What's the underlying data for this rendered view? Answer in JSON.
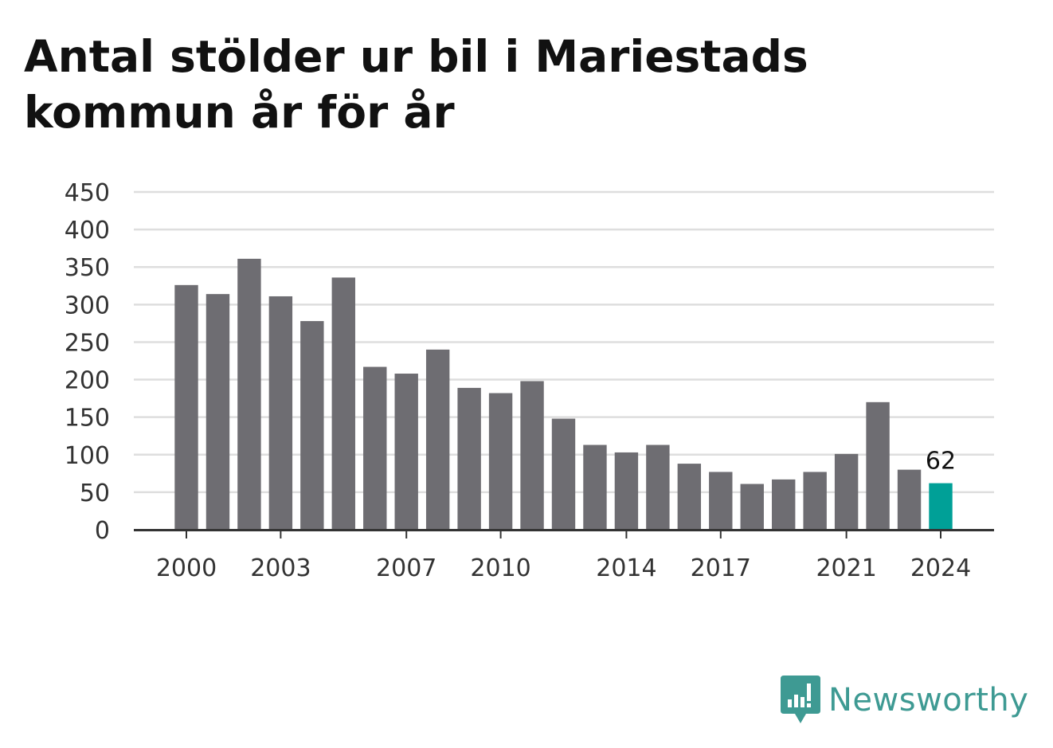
{
  "brand": {
    "name": "Newsworthy",
    "accent_color": "#3e9a93"
  },
  "chart_data": {
    "type": "bar",
    "title": "Antal stölder ur bil i Mariestads kommun år för år",
    "xlabel": "",
    "ylabel": "",
    "categories": [
      "2000",
      "2001",
      "2002",
      "2003",
      "2004",
      "2005",
      "2006",
      "2007",
      "2008",
      "2009",
      "2010",
      "2011",
      "2012",
      "2013",
      "2014",
      "2015",
      "2016",
      "2017",
      "2018",
      "2019",
      "2020",
      "2021",
      "2022",
      "2023",
      "2024"
    ],
    "values": [
      326,
      314,
      361,
      311,
      278,
      336,
      217,
      208,
      240,
      189,
      182,
      198,
      148,
      113,
      103,
      113,
      88,
      77,
      61,
      67,
      77,
      101,
      170,
      80,
      62
    ],
    "x_tick_labels": [
      "2000",
      "2003",
      "2007",
      "2010",
      "2014",
      "2017",
      "2021",
      "2024"
    ],
    "y_ticks": [
      0,
      50,
      100,
      150,
      200,
      250,
      300,
      350,
      400,
      450
    ],
    "ylim": [
      0,
      450
    ],
    "grid": true,
    "bar_color": "#6e6d72",
    "highlight_color": "#00a097",
    "highlight_category": "2024",
    "annotations": [
      {
        "category": "2024",
        "text": "62"
      }
    ]
  }
}
